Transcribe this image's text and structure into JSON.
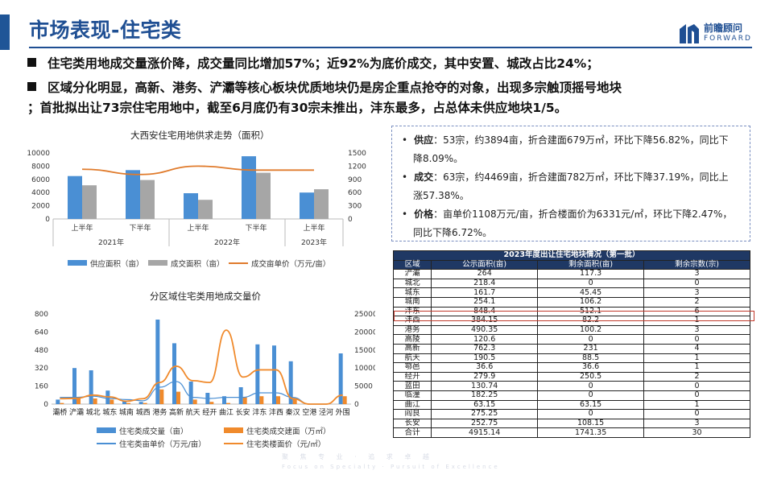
{
  "header": {
    "title": "市场表现-住宅类",
    "logo_cn": "前瞻顾问",
    "logo_en": "FORWARD",
    "accent_color": "#1f4f93"
  },
  "bullets": [
    "住宅类用地成交量涨价降，成交量同比增加57%；近92%为底价成交，其中安置、城改占比24%；",
    "区域分化明显，高新、港务、浐灞等核心板块优质地块仍是房企重点抢夺的对象，出现多宗触顶摇号地块",
    "；首批拟出让73宗住宅用地中，截至6月底仍有30宗未推出，沣东最多，占总体未供应地块1/5。"
  ],
  "info_box": {
    "supply_label": "供应",
    "supply_text": "：53宗，约3894亩，折合建面679万㎡，环比下降56.82%，同比下降8.09%。",
    "supply_text_a": "：53宗，约3894亩，折合建面679万㎡，环比下降56.82%，同比下",
    "supply_text_b": "降8.09%。",
    "deal_label": "成交",
    "deal_text_a": "：63宗，约4469亩，折合建面782万㎡，环比下降37.19%，同比上",
    "deal_text_b": "涨57.38%。",
    "price_label": "价格",
    "price_text_a": "：亩单价1108万元/亩，折合楼面价为6331元/㎡，环比下降2.47%，",
    "price_text_b": "同比下降6.72%。"
  },
  "chart_data": [
    {
      "type": "bar",
      "title": "大西安住宅用地供求走势（面积）",
      "categories": [
        "上半年",
        "下半年",
        "上半年",
        "下半年",
        "上半年"
      ],
      "year_groups": [
        "2021年",
        "2022年",
        "2023年"
      ],
      "series": [
        {
          "name": "供应面积（亩）",
          "type": "bar",
          "axis": "left",
          "color": "#4a8fd4",
          "values": [
            6500,
            7400,
            3900,
            9500,
            4000
          ]
        },
        {
          "name": "成交面积（亩）",
          "type": "bar",
          "axis": "left",
          "color": "#a6a6a6",
          "values": [
            5100,
            5900,
            2900,
            7000,
            4500
          ]
        },
        {
          "name": "成交亩单价（万元/亩）",
          "type": "line",
          "axis": "right",
          "color": "#e07b2c",
          "values": [
            1130,
            1010,
            1200,
            1110,
            1110
          ]
        }
      ],
      "ylim_left": [
        0,
        10000
      ],
      "ylim_right": [
        0,
        1500
      ],
      "yticks_left": [
        "0",
        "2000",
        "4000",
        "6000",
        "8000",
        "10000"
      ],
      "yticks_right": [
        "0",
        "300",
        "600",
        "900",
        "1200",
        "1500"
      ],
      "legend_position": "bottom"
    },
    {
      "type": "bar",
      "title": "分区域住宅类用地成交量价",
      "categories": [
        "灞桥",
        "浐灞",
        "城北",
        "城东",
        "城南",
        "城西",
        "港务",
        "高新",
        "航天",
        "经开",
        "曲江",
        "长安",
        "沣东",
        "沣西",
        "秦汉",
        "空港",
        "泾河",
        "外围"
      ],
      "series": [
        {
          "name": "住宅类成交量（亩）",
          "type": "bar",
          "axis": "left",
          "color": "#4a8fd4",
          "values": [
            40,
            320,
            300,
            120,
            30,
            20,
            750,
            540,
            200,
            100,
            70,
            150,
            530,
            520,
            380,
            0,
            0,
            450
          ]
        },
        {
          "name": "住宅类成交建面（万㎡）",
          "type": "bar",
          "axis": "left",
          "color": "#f08a2c",
          "values": [
            10,
            50,
            50,
            40,
            10,
            10,
            130,
            110,
            40,
            20,
            10,
            60,
            70,
            70,
            50,
            0,
            0,
            70
          ]
        },
        {
          "name": "住宅类亩单价（万元/亩）",
          "type": "line",
          "axis": "left",
          "color": "#4a8fd4",
          "values": [
            60,
            60,
            70,
            50,
            40,
            30,
            150,
            200,
            60,
            50,
            60,
            60,
            100,
            100,
            60,
            0,
            0,
            80
          ]
        },
        {
          "name": "住宅类楼面价（元/㎡）",
          "type": "line",
          "axis": "right",
          "color": "#f08a2c",
          "values": [
            1500,
            1600,
            2500,
            2000,
            800,
            1500,
            6000,
            10500,
            6500,
            6000,
            20500,
            7500,
            9500,
            9500,
            1500,
            0,
            0,
            2500
          ]
        }
      ],
      "ylim_left": [
        0,
        800
      ],
      "ylim_right": [
        0,
        25000
      ],
      "yticks_left": [
        "0",
        "160",
        "320",
        "480",
        "640",
        "800"
      ],
      "yticks_right": [
        "0",
        "5000",
        "10000",
        "15000",
        "20000",
        "25000"
      ],
      "legend_position": "bottom"
    }
  ],
  "table": {
    "caption": "2023年度出让住宅地块情况（第一批）",
    "headers": [
      "区域",
      "公示面积(亩)",
      "剩余面积(亩)",
      "剩余宗数(宗)"
    ],
    "rows": [
      [
        "浐灞",
        "264",
        "117.3",
        "3"
      ],
      [
        "城北",
        "218.4",
        "0",
        "0"
      ],
      [
        "城东",
        "161.7",
        "45.45",
        "3"
      ],
      [
        "城南",
        "254.1",
        "106.2",
        "2"
      ],
      [
        "沣东",
        "848.4",
        "512.1",
        "6"
      ],
      [
        "沣西",
        "384.15",
        "82.2",
        "1"
      ],
      [
        "港务",
        "490.35",
        "100.2",
        "3"
      ],
      [
        "高陵",
        "120.6",
        "0",
        "0"
      ],
      [
        "高新",
        "762.3",
        "231",
        "4"
      ],
      [
        "航天",
        "190.5",
        "88.5",
        "1"
      ],
      [
        "鄠邑",
        "36.6",
        "36.6",
        "1"
      ],
      [
        "经开",
        "279.9",
        "250.5",
        "2"
      ],
      [
        "蓝田",
        "130.74",
        "0",
        "0"
      ],
      [
        "临潼",
        "182.25",
        "0",
        "0"
      ],
      [
        "曲江",
        "63.15",
        "63.15",
        "1"
      ],
      [
        "阎良",
        "275.25",
        "0",
        "0"
      ],
      [
        "长安",
        "252.75",
        "108.15",
        "3"
      ],
      [
        "合计",
        "4915.14",
        "1741.35",
        "30"
      ]
    ],
    "header_color": "#1f3864",
    "highlight_color": "#c0392b"
  },
  "footer": {
    "watermark_cn": "聚 焦 专 业 · 追 求 卓 越",
    "watermark_en": "Focus on Specialty · Pursuit of Excellence"
  }
}
